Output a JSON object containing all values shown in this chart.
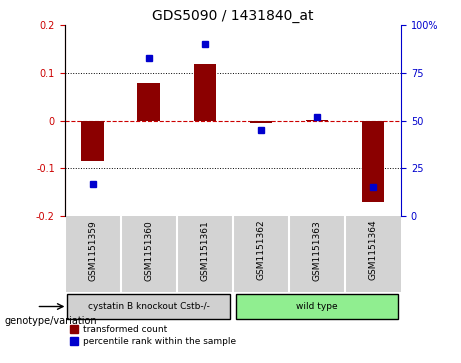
{
  "title": "GDS5090 / 1431840_at",
  "samples": [
    "GSM1151359",
    "GSM1151360",
    "GSM1151361",
    "GSM1151362",
    "GSM1151363",
    "GSM1151364"
  ],
  "bar_values": [
    -0.085,
    0.08,
    0.12,
    -0.005,
    0.002,
    -0.17
  ],
  "dot_values": [
    17,
    83,
    90,
    45,
    52,
    15
  ],
  "bar_color": "#8B0000",
  "dot_color": "#0000CD",
  "ylim_left": [
    -0.2,
    0.2
  ],
  "ylim_right": [
    0,
    100
  ],
  "yticks_left": [
    -0.2,
    -0.1,
    0,
    0.1,
    0.2
  ],
  "yticks_right": [
    0,
    25,
    50,
    75,
    100
  ],
  "yticklabels_right": [
    "0",
    "25",
    "50",
    "75",
    "100%"
  ],
  "groups": [
    {
      "label": "cystatin B knockout Cstb-/-",
      "samples": [
        0,
        1,
        2
      ],
      "color": "#90EE90"
    },
    {
      "label": "wild type",
      "samples": [
        3,
        4,
        5
      ],
      "color": "#90EE90"
    }
  ],
  "group_bg_colors": [
    "#d0d0d0",
    "#90EE90"
  ],
  "group_labels": [
    "cystatin B knockout Cstb-/-",
    "wild type"
  ],
  "genotype_label": "genotype/variation",
  "legend_bar": "transformed count",
  "legend_dot": "percentile rank within the sample",
  "bar_width": 0.4,
  "zero_line_color": "#CC0000",
  "grid_color": "#000000",
  "background_color": "#ffffff",
  "plot_bg_color": "#ffffff",
  "sample_bg_color": "#d3d3d3"
}
